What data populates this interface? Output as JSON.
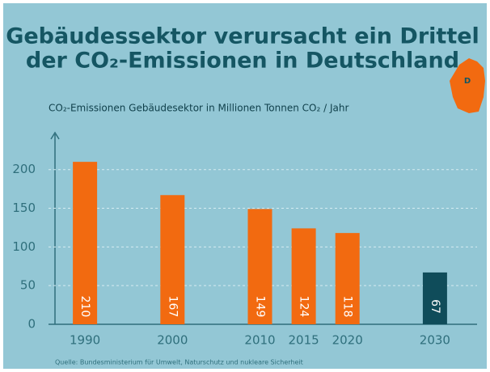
{
  "title": [
    "Gebäudessektor verursacht ein Drittel",
    "der CO₂-Emissionen in Deutschland"
  ],
  "map_label": "D",
  "source": "Quelle: Bundesministerium für Umwelt, Naturschutz und nukleare Sicherheit",
  "chart_data": {
    "type": "bar",
    "subtitle": "CO₂-Emissionen Gebäudesektor in Millionen Tonnen CO₂ / Jahr",
    "x": [
      1990,
      2000,
      2010,
      2015,
      2020,
      2030
    ],
    "values": [
      210,
      167,
      149,
      124,
      118,
      67
    ],
    "colors": [
      "#f26a10",
      "#f26a10",
      "#f26a10",
      "#f26a10",
      "#f26a10",
      "#0f4c5a"
    ],
    "xlim": [
      1985,
      2035
    ],
    "ylim": [
      0,
      230
    ],
    "yticks": [
      0,
      50,
      100,
      150,
      200
    ],
    "grid": true
  }
}
